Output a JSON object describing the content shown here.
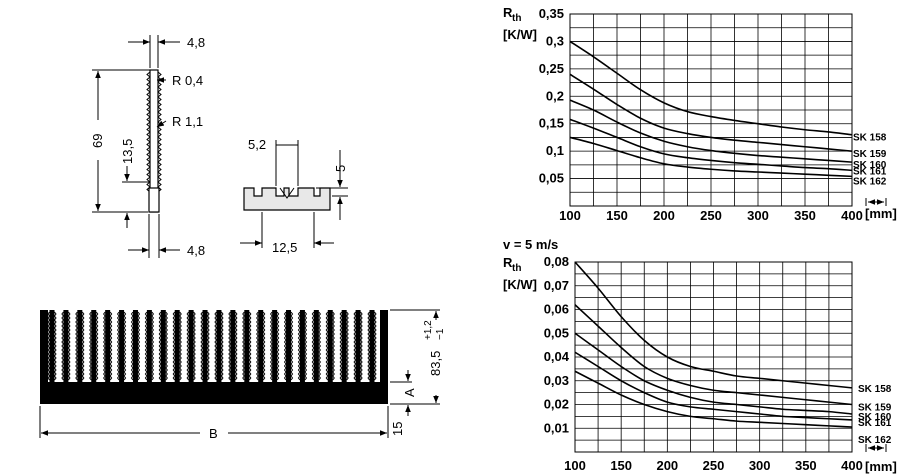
{
  "profile": {
    "dims": [
      "4,8",
      "R 0,4",
      "R 1,1",
      "69",
      "13,5",
      "4,8"
    ]
  },
  "slot": {
    "dims": [
      "5,2",
      "5",
      "12,5"
    ]
  },
  "heatsink": {
    "dims": [
      "83,5",
      "+1,2",
      "−1",
      "A",
      "15",
      "B"
    ]
  },
  "chart_data": [
    {
      "type": "line",
      "title": "",
      "ylabel_main": "R",
      "ylabel_sub": "th",
      "yunit": "[K/W]",
      "xunit": "[mm]",
      "xlim": [
        100,
        400
      ],
      "ylim": [
        0,
        0.35
      ],
      "x_ticks": [
        "100",
        "150",
        "200",
        "250",
        "300",
        "350",
        "400"
      ],
      "y_ticks": [
        "0,35",
        "0,3",
        "0,25",
        "0,2",
        "0,15",
        "0,1",
        "0,05"
      ],
      "y_tick_values": [
        0.35,
        0.3,
        0.25,
        0.2,
        0.15,
        0.1,
        0.05
      ],
      "x_minor_step": 25,
      "y_minor_step": 0.025,
      "x": [
        100,
        125,
        150,
        175,
        200,
        225,
        250,
        275,
        300,
        325,
        350,
        375,
        400
      ],
      "series": [
        {
          "name": "SK 158",
          "values": [
            0.3,
            0.272,
            0.242,
            0.212,
            0.188,
            0.172,
            0.163,
            0.156,
            0.15,
            0.144,
            0.139,
            0.135,
            0.13
          ]
        },
        {
          "name": "SK 159",
          "values": [
            0.24,
            0.213,
            0.185,
            0.16,
            0.142,
            0.132,
            0.125,
            0.12,
            0.116,
            0.112,
            0.108,
            0.104,
            0.1
          ]
        },
        {
          "name": "SK 160",
          "values": [
            0.193,
            0.175,
            0.153,
            0.133,
            0.118,
            0.108,
            0.101,
            0.096,
            0.092,
            0.089,
            0.086,
            0.083,
            0.08
          ]
        },
        {
          "name": "SK 161",
          "values": [
            0.158,
            0.142,
            0.125,
            0.108,
            0.095,
            0.088,
            0.083,
            0.079,
            0.076,
            0.073,
            0.07,
            0.068,
            0.065
          ]
        },
        {
          "name": "SK 162",
          "values": [
            0.125,
            0.114,
            0.101,
            0.088,
            0.077,
            0.071,
            0.067,
            0.064,
            0.062,
            0.06,
            0.058,
            0.056,
            0.054
          ]
        }
      ]
    },
    {
      "type": "line",
      "title": "v = 5 m/s",
      "ylabel_main": "R",
      "ylabel_sub": "th",
      "yunit": "[K/W]",
      "xunit": "[mm]",
      "xlim": [
        100,
        400
      ],
      "ylim": [
        0,
        0.08
      ],
      "x_ticks": [
        "100",
        "150",
        "200",
        "250",
        "300",
        "350",
        "400"
      ],
      "y_ticks": [
        "0,08",
        "0,07",
        "0,06",
        "0,05",
        "0,04",
        "0,03",
        "0,02",
        "0,01"
      ],
      "y_tick_values": [
        0.08,
        0.07,
        0.06,
        0.05,
        0.04,
        0.03,
        0.02,
        0.01
      ],
      "x_minor_step": 25,
      "y_minor_step": 0.005,
      "x": [
        100,
        125,
        150,
        175,
        200,
        225,
        250,
        275,
        300,
        325,
        350,
        375,
        400
      ],
      "series": [
        {
          "name": "SK 158",
          "values": [
            0.08,
            0.069,
            0.057,
            0.047,
            0.04,
            0.036,
            0.034,
            0.032,
            0.031,
            0.03,
            0.029,
            0.028,
            0.027
          ]
        },
        {
          "name": "SK 159",
          "values": [
            0.062,
            0.053,
            0.044,
            0.036,
            0.031,
            0.028,
            0.026,
            0.025,
            0.024,
            0.023,
            0.022,
            0.021,
            0.02
          ]
        },
        {
          "name": "SK 160",
          "values": [
            0.05,
            0.043,
            0.036,
            0.03,
            0.026,
            0.023,
            0.021,
            0.02,
            0.019,
            0.018,
            0.0175,
            0.017,
            0.016
          ]
        },
        {
          "name": "SK 161",
          "values": [
            0.042,
            0.036,
            0.03,
            0.025,
            0.021,
            0.019,
            0.018,
            0.017,
            0.016,
            0.015,
            0.0145,
            0.014,
            0.0135
          ]
        },
        {
          "name": "SK 162",
          "values": [
            0.034,
            0.029,
            0.024,
            0.02,
            0.017,
            0.015,
            0.014,
            0.013,
            0.0125,
            0.012,
            0.0115,
            0.011,
            0.0105
          ]
        }
      ]
    }
  ]
}
